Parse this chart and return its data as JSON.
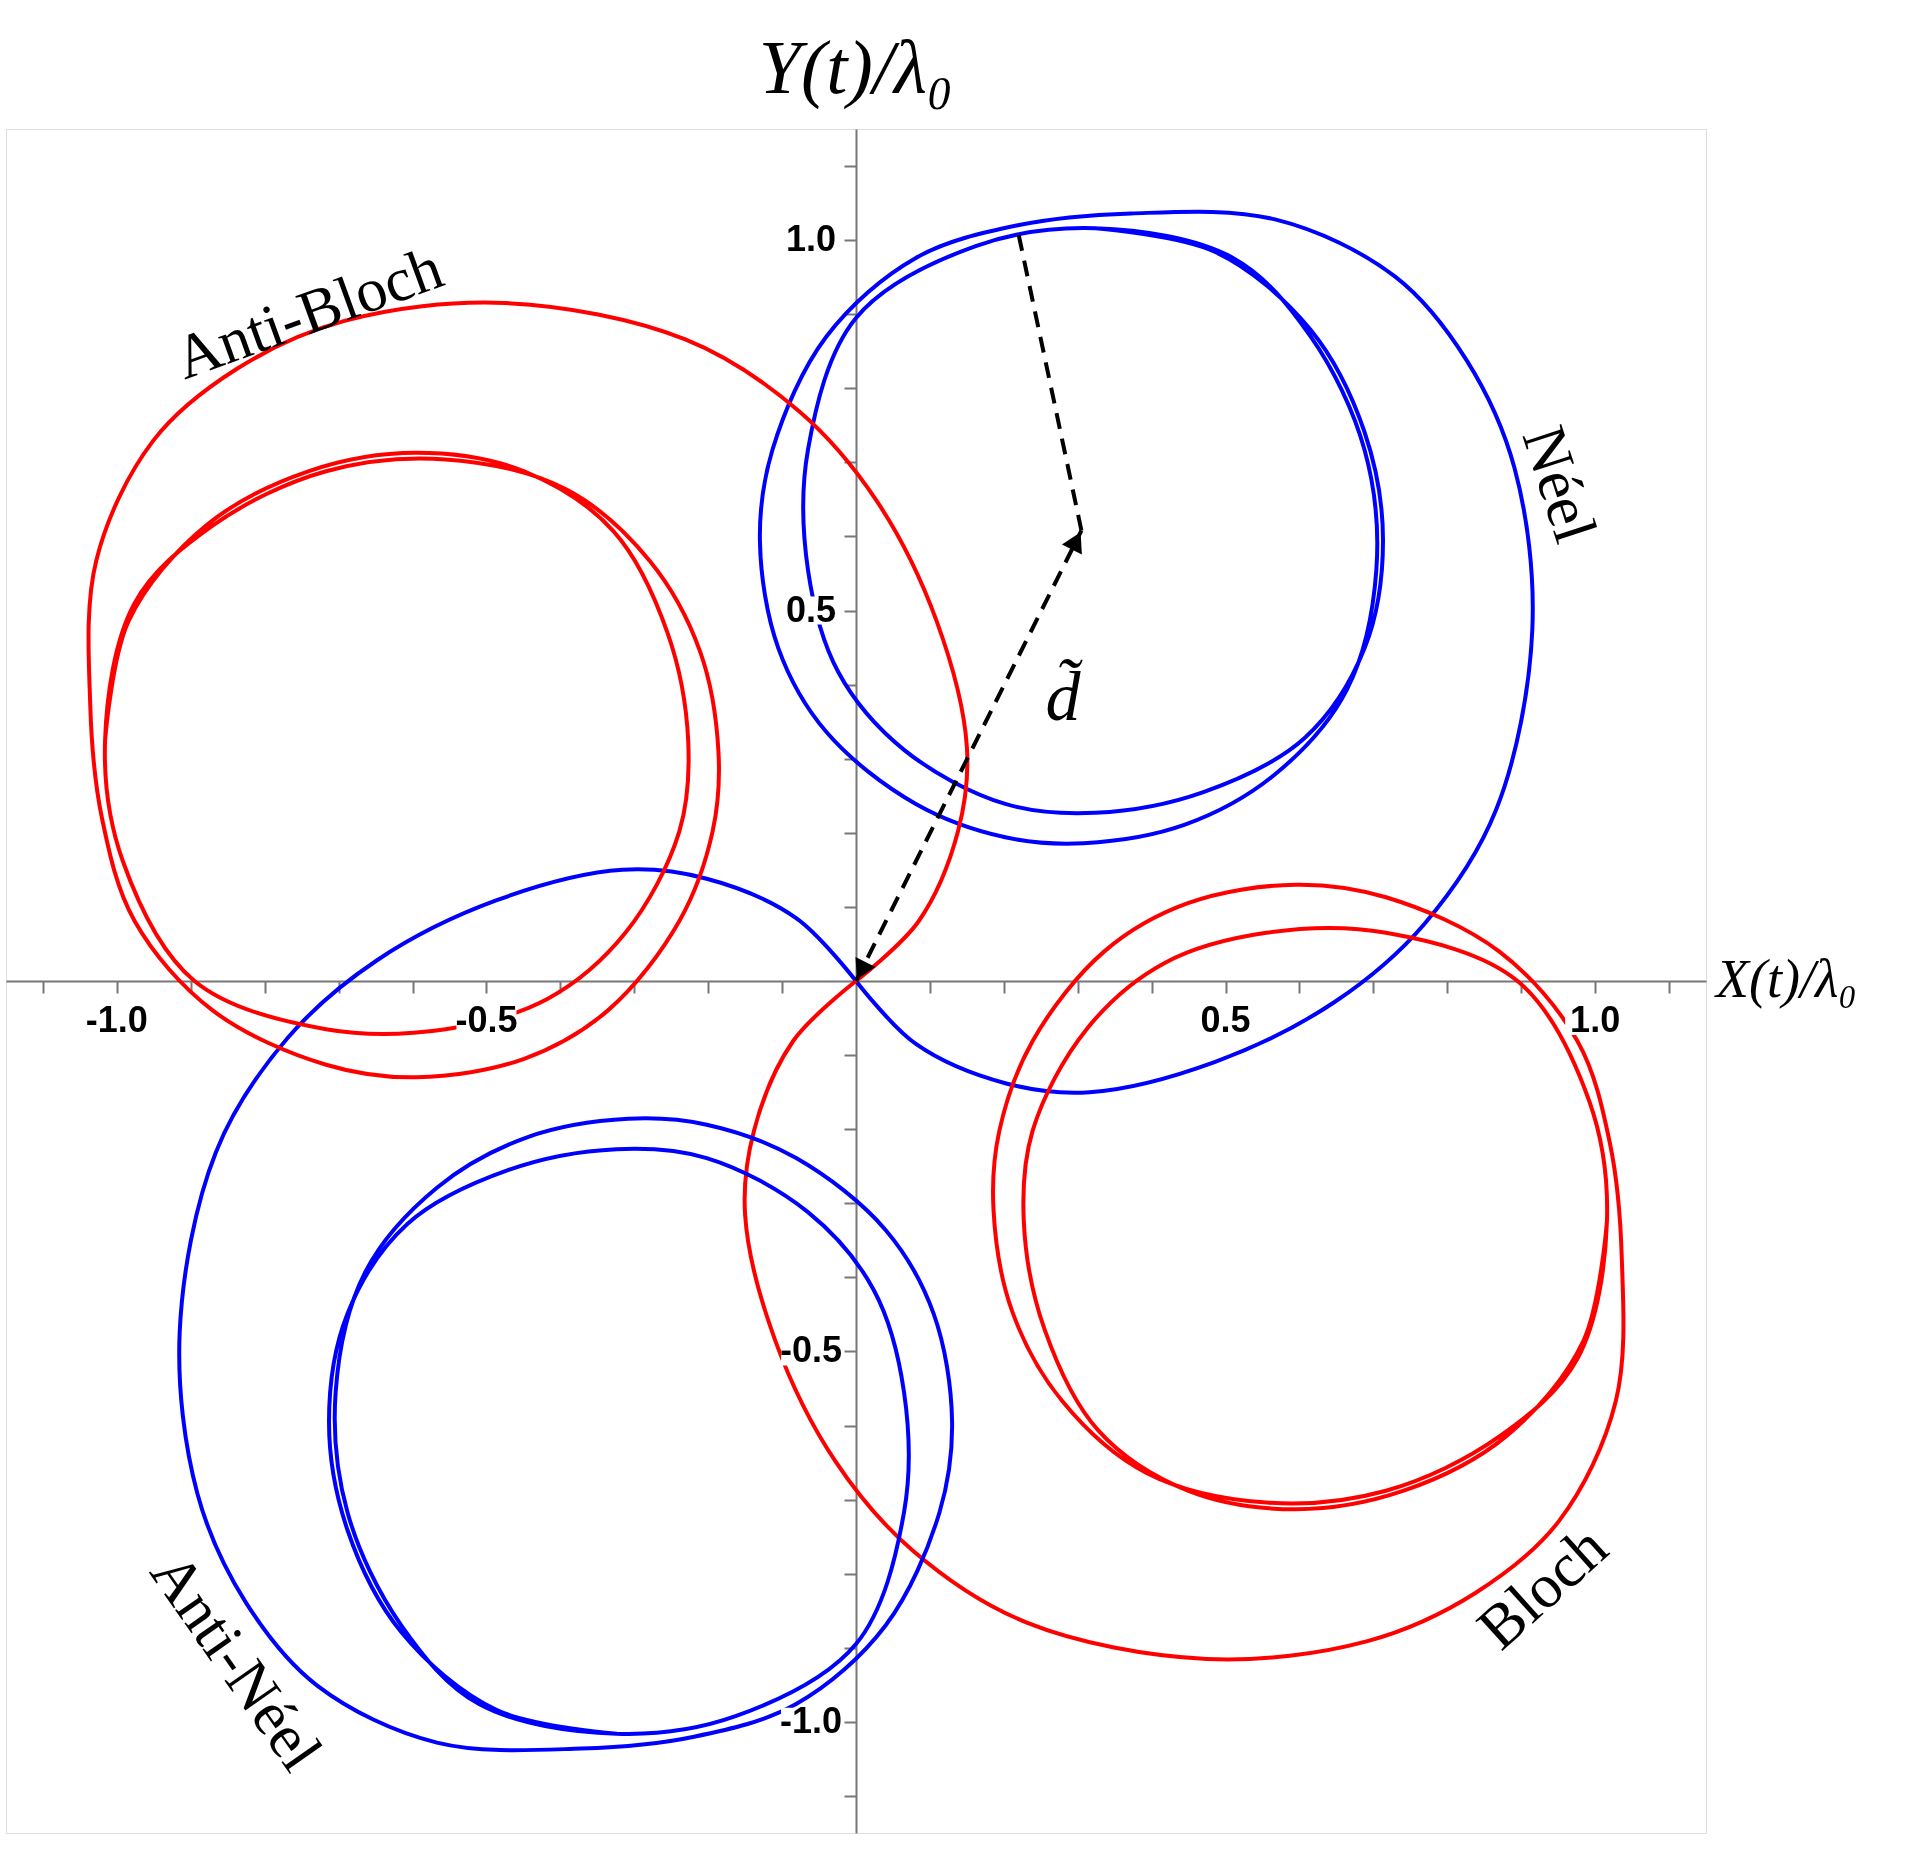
{
  "chart_data": {
    "type": "line",
    "xlabel": "X(t)/λ₀",
    "ylabel": "Y(t)/λ₀",
    "xlim": [
      -1.15,
      1.15
    ],
    "ylim": [
      -1.15,
      1.15
    ],
    "xticks": [
      {
        "value": -1.1,
        "label": null
      },
      {
        "value": -1.0,
        "label": "-1.0"
      },
      {
        "value": -0.9,
        "label": null
      },
      {
        "value": -0.8,
        "label": null
      },
      {
        "value": -0.7,
        "label": null
      },
      {
        "value": -0.6,
        "label": null
      },
      {
        "value": -0.5,
        "label": "-0.5"
      },
      {
        "value": -0.4,
        "label": null
      },
      {
        "value": -0.3,
        "label": null
      },
      {
        "value": -0.2,
        "label": null
      },
      {
        "value": -0.1,
        "label": null
      },
      {
        "value": 0.1,
        "label": null
      },
      {
        "value": 0.2,
        "label": null
      },
      {
        "value": 0.3,
        "label": null
      },
      {
        "value": 0.4,
        "label": null
      },
      0.5,
      {
        "value": 0.6,
        "label": null
      },
      {
        "value": 0.7,
        "label": null
      },
      {
        "value": 0.8,
        "label": null
      },
      {
        "value": 0.9,
        "label": null
      },
      {
        "value": 1.0,
        "label": "1.0"
      },
      {
        "value": 1.1,
        "label": null
      }
    ],
    "yticks": [
      {
        "value": -1.1,
        "label": null
      },
      {
        "value": -1.0,
        "label": "-1.0"
      },
      {
        "value": -0.9,
        "label": null
      },
      {
        "value": -0.8,
        "label": null
      },
      {
        "value": -0.7,
        "label": null
      },
      {
        "value": -0.6,
        "label": null
      },
      {
        "value": -0.5,
        "label": "-0.5"
      },
      {
        "value": -0.4,
        "label": null
      },
      {
        "value": -0.3,
        "label": null
      },
      {
        "value": -0.2,
        "label": null
      },
      {
        "value": -0.1,
        "label": null
      },
      {
        "value": 0.1,
        "label": null
      },
      {
        "value": 0.2,
        "label": null
      },
      {
        "value": 0.3,
        "label": null
      },
      {
        "value": 0.4,
        "label": null
      },
      0.5,
      {
        "value": 0.6,
        "label": null
      },
      {
        "value": 0.7,
        "label": null
      },
      {
        "value": 0.8,
        "label": null
      },
      {
        "value": 0.9,
        "label": null
      },
      {
        "value": 1.0,
        "label": "1.0"
      },
      {
        "value": 1.1,
        "label": null
      }
    ],
    "grid": false,
    "line_style": "solid",
    "marker": "none",
    "annotations": [
      "d̃"
    ],
    "series": [
      {
        "name": "Néel",
        "color": "#0000ff",
        "x": [
          0,
          0.081,
          0.202,
          0.316,
          0.486,
          0.648,
          0.769,
          0.866,
          0.915,
          0.891,
          0.826,
          0.729,
          0.567,
          0.372,
          0.219,
          0.081,
          -0.04,
          -0.113,
          -0.13,
          -0.105,
          -0.04,
          0.081,
          0.202,
          0.308,
          0.445,
          0.567,
          0.664,
          0.704,
          0.688,
          0.615,
          0.51,
          0.324,
          0.162,
          0,
          -0.065,
          -0.065,
          -0.024,
          0.065,
          0.202,
          0.324,
          0.47,
          0.607,
          0.688,
          0.713,
          0.688,
          0.615,
          0.486,
          0.324
        ],
        "values": [
          0,
          -0.085,
          -0.138,
          -0.15,
          -0.109,
          -0.028,
          0.077,
          0.231,
          0.474,
          0.692,
          0.838,
          0.951,
          1.028,
          1.036,
          1.02,
          0.976,
          0.87,
          0.717,
          0.595,
          0.449,
          0.336,
          0.239,
          0.194,
          0.186,
          0.211,
          0.279,
          0.393,
          0.555,
          0.717,
          0.87,
          0.976,
          1.016,
          0.992,
          0.895,
          0.717,
          0.555,
          0.417,
          0.312,
          0.239,
          0.227,
          0.255,
          0.328,
          0.449,
          0.595,
          0.741,
          0.879,
          0.984,
          1.016
        ]
      },
      {
        "name": "Bloch",
        "color": "#ff0000",
        "x": [
          0,
          -0.085,
          -0.138,
          -0.15,
          -0.109,
          -0.028,
          0.077,
          0.231,
          0.474,
          0.692,
          0.838,
          0.951,
          1.028,
          1.036,
          1.02,
          0.976,
          0.87,
          0.717,
          0.595,
          0.449,
          0.336,
          0.239,
          0.194,
          0.186,
          0.211,
          0.279,
          0.393,
          0.555,
          0.717,
          0.87,
          0.976,
          1.016,
          0.992,
          0.895,
          0.717,
          0.555,
          0.417,
          0.312,
          0.239,
          0.227,
          0.255,
          0.328,
          0.449,
          0.595,
          0.741,
          0.879,
          0.984,
          1.016
        ],
        "values": [
          0,
          -0.081,
          -0.202,
          -0.316,
          -0.486,
          -0.648,
          -0.769,
          -0.866,
          -0.915,
          -0.891,
          -0.826,
          -0.729,
          -0.567,
          -0.372,
          -0.219,
          -0.081,
          0.04,
          0.113,
          0.13,
          0.105,
          0.04,
          -0.081,
          -0.202,
          -0.308,
          -0.445,
          -0.567,
          -0.664,
          -0.704,
          -0.688,
          -0.615,
          -0.51,
          -0.324,
          -0.162,
          0,
          0.065,
          0.065,
          0.024,
          -0.065,
          -0.202,
          -0.324,
          -0.47,
          -0.607,
          -0.688,
          -0.713,
          -0.688,
          -0.615,
          -0.486,
          -0.324
        ]
      },
      {
        "name": "Anti-Néel",
        "color": "#0000ff",
        "x": [
          0,
          -0.081,
          -0.202,
          -0.316,
          -0.486,
          -0.648,
          -0.769,
          -0.866,
          -0.915,
          -0.891,
          -0.826,
          -0.729,
          -0.567,
          -0.372,
          -0.219,
          -0.081,
          0.04,
          0.113,
          0.13,
          0.105,
          0.04,
          -0.081,
          -0.202,
          -0.308,
          -0.445,
          -0.567,
          -0.664,
          -0.704,
          -0.688,
          -0.615,
          -0.51,
          -0.324,
          -0.162,
          0,
          0.065,
          0.065,
          0.024,
          -0.065,
          -0.202,
          -0.324,
          -0.47,
          -0.607,
          -0.688,
          -0.713,
          -0.688,
          -0.615,
          -0.486,
          -0.324
        ],
        "values": [
          0,
          0.085,
          0.138,
          0.15,
          0.109,
          0.028,
          -0.077,
          -0.231,
          -0.474,
          -0.692,
          -0.838,
          -0.951,
          -1.028,
          -1.036,
          -1.02,
          -0.976,
          -0.87,
          -0.717,
          -0.595,
          -0.449,
          -0.336,
          -0.239,
          -0.194,
          -0.186,
          -0.211,
          -0.279,
          -0.393,
          -0.555,
          -0.717,
          -0.87,
          -0.976,
          -1.016,
          -0.992,
          -0.895,
          -0.717,
          -0.555,
          -0.417,
          -0.312,
          -0.239,
          -0.227,
          -0.255,
          -0.328,
          -0.449,
          -0.595,
          -0.741,
          -0.879,
          -0.984,
          -1.016
        ]
      },
      {
        "name": "Anti-Bloch",
        "color": "#ff0000",
        "x": [
          0,
          0.085,
          0.138,
          0.15,
          0.109,
          0.028,
          -0.077,
          -0.231,
          -0.474,
          -0.692,
          -0.838,
          -0.951,
          -1.028,
          -1.036,
          -1.02,
          -0.976,
          -0.87,
          -0.717,
          -0.595,
          -0.449,
          -0.336,
          -0.239,
          -0.194,
          -0.186,
          -0.211,
          -0.279,
          -0.393,
          -0.555,
          -0.717,
          -0.87,
          -0.976,
          -1.016,
          -0.992,
          -0.895,
          -0.717,
          -0.555,
          -0.417,
          -0.312,
          -0.239,
          -0.227,
          -0.255,
          -0.328,
          -0.449,
          -0.595,
          -0.741,
          -0.879,
          -0.984,
          -1.016
        ],
        "values": [
          0,
          0.081,
          0.202,
          0.316,
          0.486,
          0.648,
          0.769,
          0.866,
          0.915,
          0.891,
          0.826,
          0.729,
          0.567,
          0.372,
          0.219,
          0.081,
          -0.04,
          -0.113,
          -0.13,
          -0.105,
          -0.04,
          0.081,
          0.202,
          0.308,
          0.445,
          0.567,
          0.664,
          0.704,
          0.688,
          0.615,
          0.51,
          0.324,
          0.162,
          0,
          -0.065,
          -0.065,
          -0.024,
          0.065,
          0.202,
          0.324,
          0.47,
          0.607,
          0.688,
          0.713,
          0.688,
          0.615,
          0.486,
          0.324
        ]
      }
    ]
  }
}
